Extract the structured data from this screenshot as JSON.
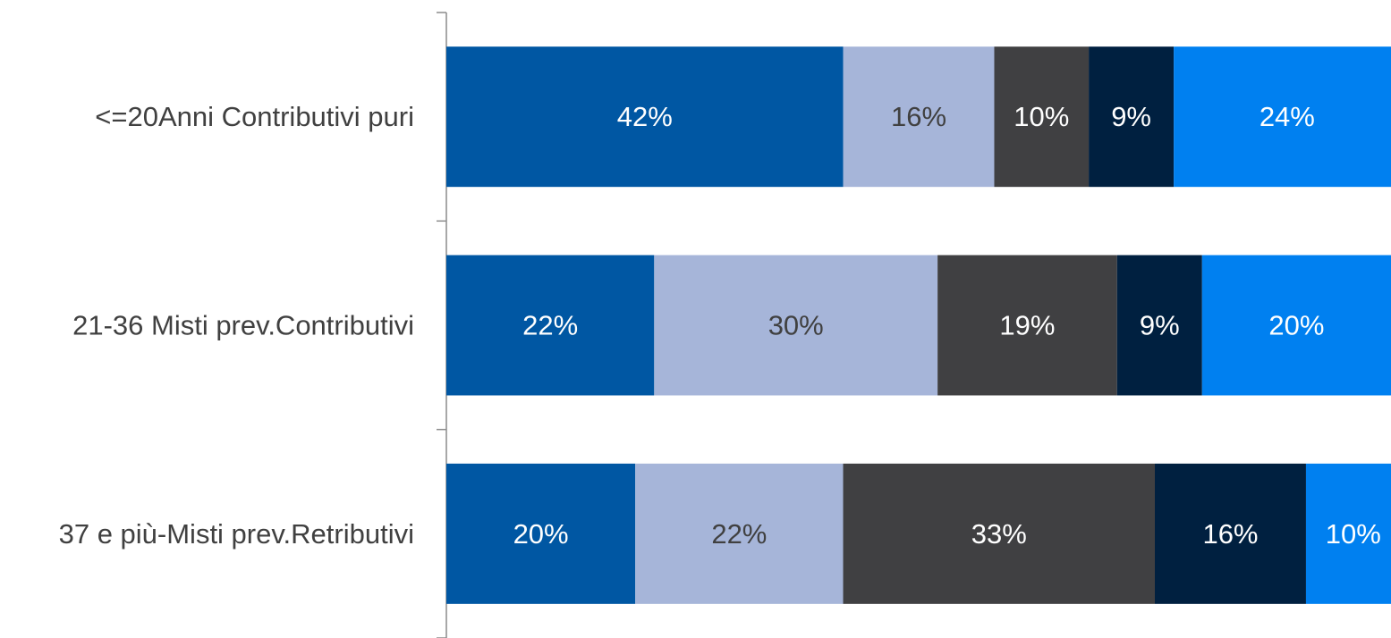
{
  "chart_data": {
    "type": "bar",
    "orientation": "horizontal",
    "stacked": true,
    "categories": [
      "<=20Anni Contributivi puri",
      "21-36 Misti prev.Contributivi",
      "37 e più-Misti prev.Retributivi"
    ],
    "series": [
      {
        "color": "#0057a3",
        "label_color": "#ffffff",
        "values": [
          42,
          22,
          20
        ]
      },
      {
        "color": "#a6b5d9",
        "label_color": "#404040",
        "values": [
          16,
          30,
          22
        ]
      },
      {
        "color": "#404042",
        "label_color": "#ffffff",
        "values": [
          10,
          19,
          33
        ]
      },
      {
        "color": "#002040",
        "label_color": "#ffffff",
        "values": [
          9,
          9,
          16
        ]
      },
      {
        "color": "#0080f0",
        "label_color": "#ffffff",
        "values": [
          24,
          20,
          10
        ]
      }
    ],
    "value_suffix": "%",
    "xlim": [
      0,
      100
    ],
    "legend": false,
    "grid": false
  }
}
